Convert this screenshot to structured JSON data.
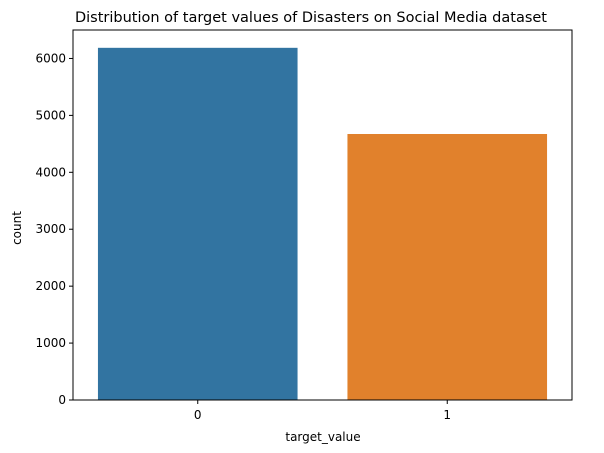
{
  "chart_data": {
    "type": "bar",
    "title": "Distribution of target values of Disasters on Social Media dataset",
    "xlabel": "target_value",
    "ylabel": "count",
    "categories": [
      "0",
      "1"
    ],
    "values": [
      6187,
      4673
    ],
    "yticks": [
      0,
      1000,
      2000,
      3000,
      4000,
      5000,
      6000
    ],
    "ytick_labels": [
      "0",
      "1000",
      "2000",
      "3000",
      "4000",
      "5000",
      "6000"
    ],
    "ylim": [
      0,
      6500
    ],
    "grid": false,
    "legend": "none",
    "colors": [
      "#3274a1",
      "#e1812c"
    ]
  }
}
